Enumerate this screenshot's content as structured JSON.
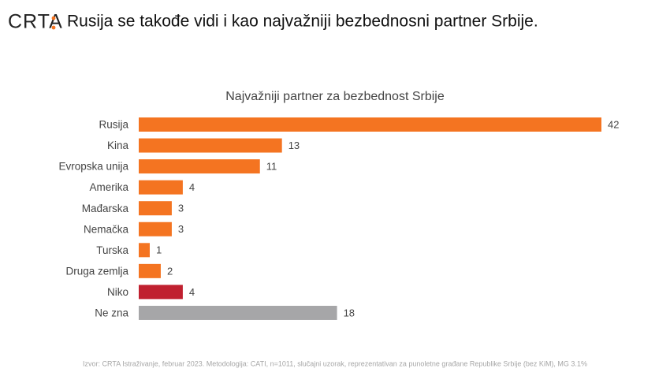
{
  "header": {
    "logo": "CRTA",
    "title": "Rusija se takođe vidi i kao najvažniji bezbednosni partner Srbije."
  },
  "chart_data": {
    "type": "bar",
    "orientation": "horizontal",
    "title": "Najvažniji partner za bezbednost Srbije",
    "categories": [
      "Rusija",
      "Kina",
      "Evropska unija",
      "Amerika",
      "Mađarska",
      "Nemačka",
      "Turska",
      "Druga zemlja",
      "Niko",
      "Ne zna"
    ],
    "values": [
      42,
      13,
      11,
      4,
      3,
      3,
      1,
      2,
      4,
      18
    ],
    "colors": [
      "#f47421",
      "#f47421",
      "#f47421",
      "#f47421",
      "#f47421",
      "#f47421",
      "#f47421",
      "#f47421",
      "#c0202f",
      "#a6a6a8"
    ],
    "grid": false
  },
  "footer": {
    "source": "Izvor: CRTA Istraživanje, februar 2023. Metodologija: CATI, n=1011, slučajni uzorak, reprezentativan za punoletne građane Republike Srbije (bez KiM), MG 3.1%"
  }
}
